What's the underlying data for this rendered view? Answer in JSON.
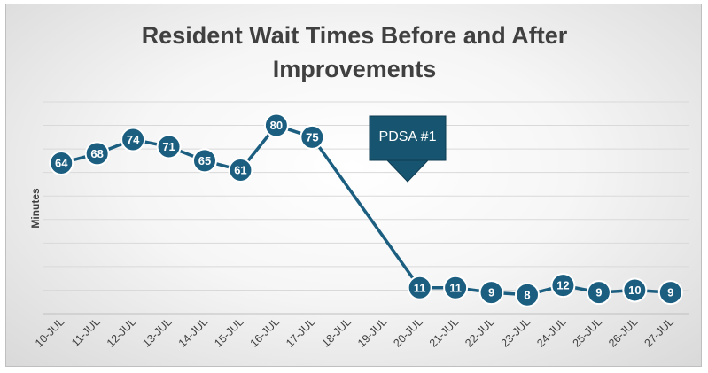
{
  "chart_data": {
    "type": "line",
    "title_line1": "Resident Wait Times Before and After",
    "title_line2": "Improvements",
    "ylabel": "Minutes",
    "xlabel": "",
    "categories": [
      "10-JUL",
      "11-JUL",
      "12-JUL",
      "13-JUL",
      "14-JUL",
      "15-JUL",
      "16-JUL",
      "17-JUL",
      "18-JUL",
      "19-JUL",
      "20-JUL",
      "21-JUL",
      "22-JUL",
      "23-JUL",
      "24-JUL",
      "25-JUL",
      "26-JUL",
      "27-JUL"
    ],
    "values": [
      64,
      68,
      74,
      71,
      65,
      61,
      80,
      75,
      null,
      null,
      11,
      11,
      9,
      8,
      12,
      9,
      10,
      9
    ],
    "ylim": [
      0,
      90
    ],
    "grid": true,
    "legend": "none",
    "annotation": {
      "text": "PDSA #1",
      "category": "20-JUL"
    },
    "colors": {
      "line": "#1b5e80",
      "marker": "#1b5e80",
      "annotation_fill": "#16546f",
      "gridline": "#d9d9d9"
    }
  }
}
